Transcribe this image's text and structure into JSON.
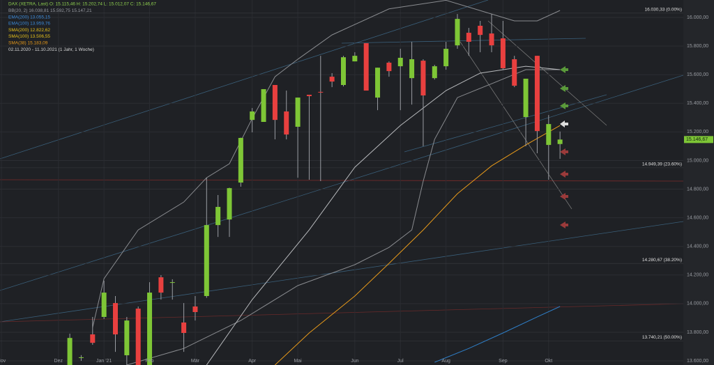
{
  "chart_data": {
    "type": "candlestick",
    "header": [
      {
        "text": "DAX (XETRA, Last)  O: 15.115,46  H: 15.202,74  L: 15.012,07  C: 15.146,67",
        "color": "#8fd14f"
      },
      {
        "text": "BB(20, 2)  16.038,81  15.592,75  15.147,21",
        "color": "#9a9da3"
      },
      {
        "text": "EMA(200)  13.055,15",
        "color": "#3c8ad8"
      },
      {
        "text": "EMA(100)  13.959,76",
        "color": "#3c8ad8"
      },
      {
        "text": "SMA(200)  12.822,62",
        "color": "#e8c21a"
      },
      {
        "text": "SMA(100)  13.506,55",
        "color": "#e8c21a"
      },
      {
        "text": "SMA(38)  15.183,09",
        "color": "#e89a1a"
      },
      {
        "text": "02.11.2020 - 11.10.2021  (1 Jahr, 1 Woche)",
        "color": "#d8d8d8"
      }
    ],
    "categories": [
      "Nov",
      null,
      null,
      null,
      null,
      "Dez",
      null,
      null,
      null,
      "Jan '21",
      null,
      null,
      null,
      "Feb",
      null,
      null,
      null,
      "Mär",
      null,
      null,
      null,
      null,
      "Apr",
      null,
      null,
      null,
      "Mai",
      null,
      null,
      null,
      null,
      "Jun",
      null,
      null,
      null,
      "Jul",
      null,
      null,
      null,
      "Aug",
      null,
      null,
      null,
      null,
      "Sep",
      null,
      null,
      null,
      "Okt",
      null
    ],
    "open": [
      null,
      null,
      null,
      null,
      null,
      null,
      13500,
      13620,
      13785,
      13907,
      14004,
      13639,
      13965,
      13560,
      14184,
      14145,
      13868,
      13980,
      14053,
      14549,
      14588,
      14846,
      15284,
      15270,
      15528,
      15343,
      15236,
      15460,
      15480,
      15586,
      15528,
      15693,
      15820,
      15440,
      15684,
      15659,
      15576,
      15698,
      15576,
      15659,
      15805,
      15893,
      15942,
      15888,
      15854,
      15708,
      15304,
      15732,
      15109,
      15115.46
    ],
    "high": [
      null,
      null,
      null,
      null,
      null,
      null,
      13790,
      13640,
      13907,
      14160,
      14053,
      13907,
      13980,
      14150,
      14199,
      14170,
      14004,
      14053,
      14880,
      14759,
      14810,
      15160,
      15367,
      15499,
      15528,
      15489,
      15440,
      15460,
      15732,
      15611,
      15732,
      15757,
      15820,
      15649,
      15693,
      15781,
      15830,
      15708,
      15669,
      15830,
      16024,
      15927,
      15976,
      16024,
      15976,
      15732,
      15572,
      15732,
      15318,
      15202.74
    ],
    "low": [
      null,
      null,
      null,
      null,
      null,
      null,
      13450,
      13600,
      13712,
      13892,
      13663,
      13560,
      13500,
      13500,
      14028,
      14028,
      13663,
      13882,
      14040,
      14466,
      14466,
      14817,
      15197,
      15270,
      15148,
      15148,
      14880,
      14866,
      14856,
      15513,
      15518,
      15693,
      15489,
      15352,
      15586,
      15352,
      15391,
      15100,
      15566,
      15635,
      15781,
      15732,
      15757,
      15757,
      15635,
      15513,
      15100,
      15051,
      14866,
      15012.07
    ],
    "close": [
      null,
      null,
      null,
      null,
      null,
      null,
      13760,
      13625,
      13726,
      14077,
      13785,
      13882,
      13560,
      14077,
      14077,
      14150,
      13795,
      13941,
      14549,
      14676,
      14807,
      15158,
      15343,
      15499,
      15284,
      15182,
      15440,
      15450,
      15475,
      15552,
      15722,
      15732,
      15489,
      15649,
      15625,
      15718,
      15708,
      15455,
      15659,
      15781,
      15990,
      15830,
      15878,
      15805,
      15645,
      15523,
      15572,
      15206,
      15255,
      15146.67
    ],
    "up_color": "#7ec636",
    "down_color": "#e8403f",
    "lines": [
      {
        "color": "#e89a1a",
        "x": [
          24,
          27,
          31,
          34,
          37,
          40,
          43,
          46,
          49
        ],
        "values": [
          13571,
          13795,
          14053,
          14281,
          14515,
          14768,
          14963,
          15109,
          15245
        ]
      },
      {
        "color": "#2f7fc8",
        "x": [
          38,
          41,
          44,
          47,
          49
        ],
        "values": [
          13590,
          13687,
          13795,
          13907,
          13980
        ]
      },
      {
        "color": "#8a8c90",
        "x": [
          8,
          9,
          12,
          16,
          18,
          20,
          22,
          24,
          26,
          29,
          34,
          39,
          43,
          45,
          47,
          49
        ],
        "values": [
          13834,
          14174,
          14515,
          14710,
          14880,
          14978,
          15294,
          15586,
          15708,
          15878,
          16060,
          16120,
          16024,
          15976,
          15976,
          16049
        ]
      },
      {
        "color": "#8a8c90",
        "x": [
          11,
          16,
          21,
          26,
          31,
          34,
          36,
          37,
          38,
          40,
          43,
          46,
          49
        ],
        "values": [
          13571,
          13687,
          13882,
          14126,
          14272,
          14393,
          14515,
          14856,
          15148,
          15440,
          15537,
          15635,
          15635
        ]
      },
      {
        "color": "#b8babd",
        "x": [
          18,
          22,
          27,
          31,
          35,
          39,
          42,
          46,
          49
        ],
        "values": [
          13571,
          14028,
          14515,
          14953,
          15245,
          15489,
          15611,
          15659,
          15635
        ]
      }
    ],
    "fib_levels": [
      {
        "value": 16030.33,
        "label": "16.030,33 (0.00%)"
      },
      {
        "value": 14949.39,
        "label": "14.949,39 (23.60%)"
      },
      {
        "value": 14280.67,
        "label": "14.280,67 (38.20%)"
      },
      {
        "value": 13740.21,
        "label": "13.740,21 (50.00%)"
      }
    ],
    "last_price": {
      "value": 15146.67,
      "label": "15.146,67"
    },
    "ylim": [
      13571,
      16122
    ],
    "yticks": [
      {
        "value": 16000,
        "label": "16.000,00"
      },
      {
        "value": 15800,
        "label": "15.800,00"
      },
      {
        "value": 15600,
        "label": "15.600,00"
      },
      {
        "value": 15400,
        "label": "15.400,00"
      },
      {
        "value": 15200,
        "label": "15.200,00"
      },
      {
        "value": 15000,
        "label": "15.000,00"
      },
      {
        "value": 14800,
        "label": "14.800,00"
      },
      {
        "value": 14600,
        "label": "14.600,00"
      },
      {
        "value": 14400,
        "label": "14.400,00"
      },
      {
        "value": 14200,
        "label": "14.200,00"
      },
      {
        "value": 14000,
        "label": "14.000,00"
      },
      {
        "value": 13800,
        "label": "13.800,00"
      },
      {
        "value": 13600,
        "label": "13.600,00"
      }
    ],
    "grid": true
  }
}
